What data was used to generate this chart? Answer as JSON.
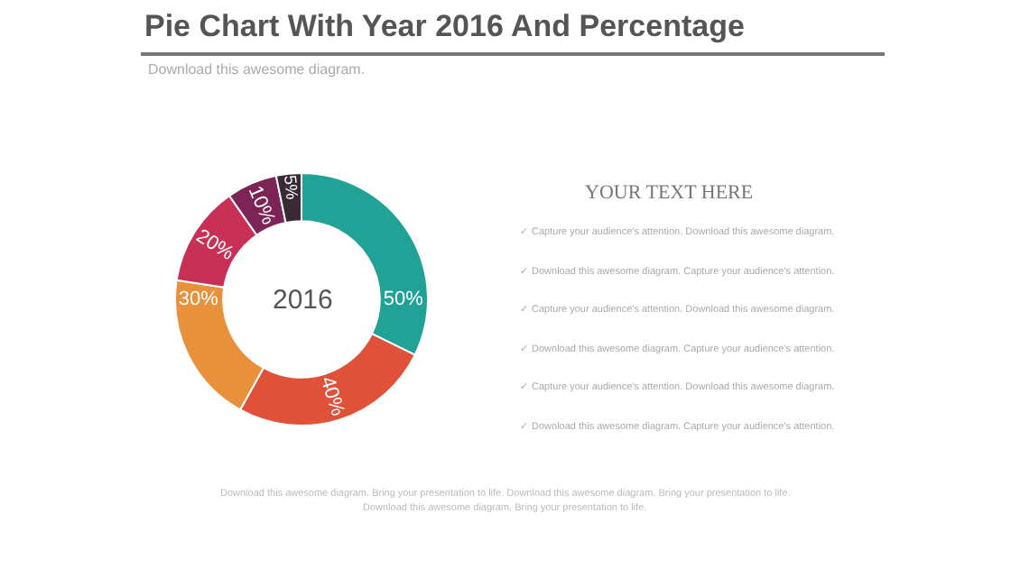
{
  "chart_data": {
    "type": "donut",
    "title": "Pie Chart With Year 2016 And Percentage",
    "subtitle": "Download this awesome diagram.",
    "categories": [
      null,
      null,
      null,
      null,
      null,
      null
    ],
    "values": [
      50,
      40,
      30,
      20,
      10,
      5
    ],
    "colors": [
      "#20a297",
      "#e0513a",
      "#e9913a",
      "#c93056",
      "#7c2456",
      "#3a2a35"
    ],
    "value_labels": [
      "50%",
      "40%",
      "30%",
      "20%",
      "10%",
      "5%"
    ],
    "legend": false,
    "annotations": [
      "2016",
      "YOUR TEXT HERE",
      "✓ Capture your audience's attention. Download this awesome diagram.",
      "✓ Download this awesome diagram. Capture your audience's attention.",
      "✓ Capture your audience's attention. Download this awesome diagram.",
      "✓ Download this awesome diagram. Capture your audience's attention.",
      "✓ Capture your audience's attention. Download this awesome diagram.",
      "✓ Download this awesome diagram. Capture your audience's attention.",
      "Download this awesome diagram. Bring your presentation to life. Download this awesome diagram. Bring your presentation to life.",
      "Download this awesome diagram. Bring your presentation to life."
    ]
  }
}
